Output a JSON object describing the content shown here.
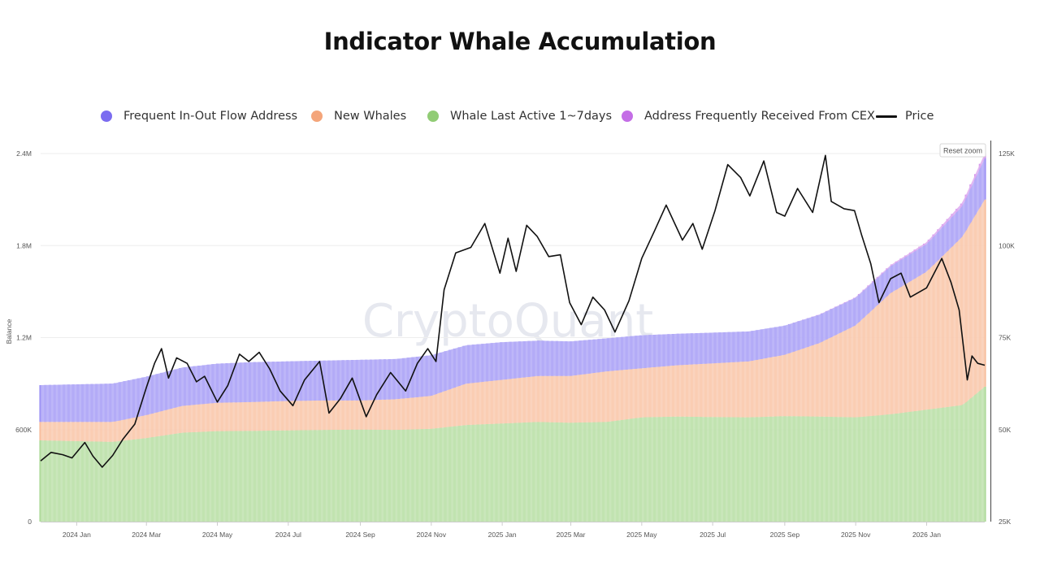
{
  "chart_data": {
    "type": "area",
    "title": "Indicator Whale Accumulation",
    "ylabel": "Balance",
    "ylim": [
      0,
      2400000
    ],
    "y2lim": [
      25000,
      125000
    ],
    "y_ticks": [
      {
        "value": 0,
        "label": "0"
      },
      {
        "value": 600000,
        "label": "600K"
      },
      {
        "value": 1200000,
        "label": "1.2M"
      },
      {
        "value": 1800000,
        "label": "1.8M"
      },
      {
        "value": 2400000,
        "label": "2.4M"
      }
    ],
    "y2_ticks": [
      {
        "value": 25000,
        "label": "25K"
      },
      {
        "value": 50000,
        "label": "50K"
      },
      {
        "value": 75000,
        "label": "75K"
      },
      {
        "value": 100000,
        "label": "100K"
      },
      {
        "value": 125000,
        "label": "125K"
      }
    ],
    "x_start": "2023-12-01",
    "x_end": "2026-02-20",
    "x_ticks": [
      {
        "date": "2024-01-01",
        "label": "2024 Jan"
      },
      {
        "date": "2024-03-01",
        "label": "2024 Mar"
      },
      {
        "date": "2024-05-01",
        "label": "2024 May"
      },
      {
        "date": "2024-07-01",
        "label": "2024 Jul"
      },
      {
        "date": "2024-09-01",
        "label": "2024 Sep"
      },
      {
        "date": "2024-11-01",
        "label": "2024 Nov"
      },
      {
        "date": "2025-01-01",
        "label": "2025 Jan"
      },
      {
        "date": "2025-03-01",
        "label": "2025 Mar"
      },
      {
        "date": "2025-05-01",
        "label": "2025 May"
      },
      {
        "date": "2025-07-01",
        "label": "2025 Jul"
      },
      {
        "date": "2025-09-01",
        "label": "2025 Sep"
      },
      {
        "date": "2025-11-01",
        "label": "2025 Nov"
      },
      {
        "date": "2026-01-01",
        "label": "2026 Jan"
      }
    ],
    "legend_position": "top",
    "grid": true,
    "series": [
      {
        "name": "Whale Last Active 1~7days",
        "color": "#91cc75",
        "axis": "left",
        "stack": "balance",
        "points": [
          [
            "2023-12-01",
            530000
          ],
          [
            "2024-01-01",
            525000
          ],
          [
            "2024-02-01",
            520000
          ],
          [
            "2024-03-01",
            545000
          ],
          [
            "2024-04-01",
            580000
          ],
          [
            "2024-05-01",
            590000
          ],
          [
            "2024-06-01",
            592000
          ],
          [
            "2024-07-01",
            595000
          ],
          [
            "2024-08-01",
            598000
          ],
          [
            "2024-09-01",
            600000
          ],
          [
            "2024-10-01",
            598000
          ],
          [
            "2024-11-01",
            605000
          ],
          [
            "2024-12-01",
            630000
          ],
          [
            "2025-01-01",
            640000
          ],
          [
            "2025-02-01",
            650000
          ],
          [
            "2025-03-01",
            645000
          ],
          [
            "2025-04-01",
            650000
          ],
          [
            "2025-05-01",
            680000
          ],
          [
            "2025-06-01",
            685000
          ],
          [
            "2025-07-01",
            682000
          ],
          [
            "2025-08-01",
            680000
          ],
          [
            "2025-09-01",
            688000
          ],
          [
            "2025-10-01",
            685000
          ],
          [
            "2025-11-01",
            680000
          ],
          [
            "2025-12-01",
            700000
          ],
          [
            "2026-01-01",
            730000
          ],
          [
            "2026-02-01",
            760000
          ],
          [
            "2026-02-20",
            880000
          ]
        ]
      },
      {
        "name": "New Whales",
        "color": "#f4a57a",
        "axis": "left",
        "stack": "balance",
        "points": [
          [
            "2023-12-01",
            120000
          ],
          [
            "2024-01-01",
            125000
          ],
          [
            "2024-02-01",
            130000
          ],
          [
            "2024-03-01",
            150000
          ],
          [
            "2024-04-01",
            175000
          ],
          [
            "2024-05-01",
            185000
          ],
          [
            "2024-06-01",
            188000
          ],
          [
            "2024-07-01",
            192000
          ],
          [
            "2024-08-01",
            192000
          ],
          [
            "2024-09-01",
            190000
          ],
          [
            "2024-10-01",
            200000
          ],
          [
            "2024-11-01",
            215000
          ],
          [
            "2024-12-01",
            270000
          ],
          [
            "2025-01-01",
            285000
          ],
          [
            "2025-02-01",
            300000
          ],
          [
            "2025-03-01",
            305000
          ],
          [
            "2025-04-01",
            330000
          ],
          [
            "2025-05-01",
            320000
          ],
          [
            "2025-06-01",
            335000
          ],
          [
            "2025-07-01",
            350000
          ],
          [
            "2025-08-01",
            365000
          ],
          [
            "2025-09-01",
            400000
          ],
          [
            "2025-10-01",
            480000
          ],
          [
            "2025-11-01",
            600000
          ],
          [
            "2025-12-01",
            790000
          ],
          [
            "2026-01-01",
            900000
          ],
          [
            "2026-02-01",
            1100000
          ],
          [
            "2026-02-20",
            1220000
          ]
        ]
      },
      {
        "name": "Frequent In-Out Flow Address",
        "color": "#7b6cf0",
        "axis": "left",
        "stack": "balance",
        "points": [
          [
            "2023-12-01",
            240000
          ],
          [
            "2024-01-01",
            245000
          ],
          [
            "2024-02-01",
            250000
          ],
          [
            "2024-03-01",
            250000
          ],
          [
            "2024-04-01",
            250000
          ],
          [
            "2024-05-01",
            255000
          ],
          [
            "2024-06-01",
            260000
          ],
          [
            "2024-07-01",
            258000
          ],
          [
            "2024-08-01",
            260000
          ],
          [
            "2024-09-01",
            265000
          ],
          [
            "2024-10-01",
            262000
          ],
          [
            "2024-11-01",
            265000
          ],
          [
            "2024-12-01",
            250000
          ],
          [
            "2025-01-01",
            245000
          ],
          [
            "2025-02-01",
            230000
          ],
          [
            "2025-03-01",
            225000
          ],
          [
            "2025-04-01",
            215000
          ],
          [
            "2025-05-01",
            215000
          ],
          [
            "2025-06-01",
            205000
          ],
          [
            "2025-07-01",
            200000
          ],
          [
            "2025-08-01",
            195000
          ],
          [
            "2025-09-01",
            190000
          ],
          [
            "2025-10-01",
            185000
          ],
          [
            "2025-11-01",
            180000
          ],
          [
            "2025-12-01",
            175000
          ],
          [
            "2026-01-01",
            180000
          ],
          [
            "2026-02-01",
            200000
          ],
          [
            "2026-02-20",
            270000
          ]
        ]
      },
      {
        "name": "Address Frequently Received From CEX",
        "color": "#c46de6",
        "axis": "left",
        "stack": "balance",
        "points": [
          [
            "2023-12-01",
            0
          ],
          [
            "2025-09-01",
            0
          ],
          [
            "2025-11-01",
            3000
          ],
          [
            "2026-01-01",
            12000
          ],
          [
            "2026-02-01",
            22000
          ],
          [
            "2026-02-20",
            30000
          ]
        ]
      },
      {
        "name": "Price",
        "color": "#111111",
        "axis": "right",
        "type": "line",
        "points": [
          [
            "2023-12-01",
            41500
          ],
          [
            "2023-12-10",
            43800
          ],
          [
            "2023-12-20",
            43200
          ],
          [
            "2023-12-28",
            42300
          ],
          [
            "2024-01-08",
            46500
          ],
          [
            "2024-01-15",
            42800
          ],
          [
            "2024-01-23",
            39800
          ],
          [
            "2024-02-01",
            43000
          ],
          [
            "2024-02-10",
            47500
          ],
          [
            "2024-02-20",
            51500
          ],
          [
            "2024-03-01",
            61500
          ],
          [
            "2024-03-08",
            68000
          ],
          [
            "2024-03-14",
            72000
          ],
          [
            "2024-03-20",
            64000
          ],
          [
            "2024-03-27",
            69500
          ],
          [
            "2024-04-05",
            68000
          ],
          [
            "2024-04-13",
            63000
          ],
          [
            "2024-04-20",
            64500
          ],
          [
            "2024-05-01",
            57500
          ],
          [
            "2024-05-10",
            62000
          ],
          [
            "2024-05-20",
            70500
          ],
          [
            "2024-05-28",
            68500
          ],
          [
            "2024-06-06",
            71000
          ],
          [
            "2024-06-15",
            66500
          ],
          [
            "2024-06-24",
            60500
          ],
          [
            "2024-07-05",
            56500
          ],
          [
            "2024-07-15",
            63500
          ],
          [
            "2024-07-28",
            68500
          ],
          [
            "2024-08-05",
            54500
          ],
          [
            "2024-08-15",
            58500
          ],
          [
            "2024-08-25",
            64000
          ],
          [
            "2024-09-06",
            53500
          ],
          [
            "2024-09-15",
            59500
          ],
          [
            "2024-09-27",
            65500
          ],
          [
            "2024-10-10",
            60500
          ],
          [
            "2024-10-20",
            68000
          ],
          [
            "2024-10-29",
            72000
          ],
          [
            "2024-11-05",
            68500
          ],
          [
            "2024-11-12",
            88000
          ],
          [
            "2024-11-22",
            98000
          ],
          [
            "2024-12-05",
            99500
          ],
          [
            "2024-12-17",
            106000
          ],
          [
            "2024-12-30",
            92500
          ],
          [
            "2025-01-06",
            102000
          ],
          [
            "2025-01-13",
            93000
          ],
          [
            "2025-01-22",
            105500
          ],
          [
            "2025-01-31",
            102500
          ],
          [
            "2025-02-10",
            97000
          ],
          [
            "2025-02-20",
            97500
          ],
          [
            "2025-02-28",
            84500
          ],
          [
            "2025-03-10",
            78500
          ],
          [
            "2025-03-20",
            86000
          ],
          [
            "2025-03-30",
            82500
          ],
          [
            "2025-04-08",
            76500
          ],
          [
            "2025-04-20",
            85000
          ],
          [
            "2025-05-01",
            96500
          ],
          [
            "2025-05-12",
            104000
          ],
          [
            "2025-05-22",
            111000
          ],
          [
            "2025-06-05",
            101500
          ],
          [
            "2025-06-14",
            106000
          ],
          [
            "2025-06-22",
            99000
          ],
          [
            "2025-07-03",
            109500
          ],
          [
            "2025-07-14",
            122000
          ],
          [
            "2025-07-25",
            118500
          ],
          [
            "2025-08-02",
            113500
          ],
          [
            "2025-08-14",
            123000
          ],
          [
            "2025-08-25",
            109000
          ],
          [
            "2025-09-01",
            108000
          ],
          [
            "2025-09-12",
            115500
          ],
          [
            "2025-09-25",
            109000
          ],
          [
            "2025-10-06",
            124500
          ],
          [
            "2025-10-11",
            112000
          ],
          [
            "2025-10-22",
            110000
          ],
          [
            "2025-10-31",
            109500
          ],
          [
            "2025-11-06",
            103000
          ],
          [
            "2025-11-14",
            95000
          ],
          [
            "2025-11-21",
            84500
          ],
          [
            "2025-12-01",
            91000
          ],
          [
            "2025-12-10",
            92500
          ],
          [
            "2025-12-18",
            86000
          ],
          [
            "2026-01-01",
            88500
          ],
          [
            "2026-01-14",
            96500
          ],
          [
            "2026-01-22",
            90000
          ],
          [
            "2026-01-29",
            82500
          ],
          [
            "2026-02-05",
            63500
          ],
          [
            "2026-02-09",
            70000
          ],
          [
            "2026-02-14",
            68000
          ],
          [
            "2026-02-20",
            67500
          ]
        ]
      }
    ]
  },
  "legend": [
    {
      "label": "Frequent In-Out Flow Address",
      "color": "#7b6cf0"
    },
    {
      "label": "New Whales",
      "color": "#f4a57a"
    },
    {
      "label": "Whale Last Active 1~7days",
      "color": "#91cc75"
    },
    {
      "label": "Address Frequently Received From CEX",
      "color": "#c46de6"
    },
    {
      "label": "Price",
      "color": "#111111"
    }
  ],
  "reset_zoom_label": "Reset zoom",
  "watermark": "CryptoQuant"
}
